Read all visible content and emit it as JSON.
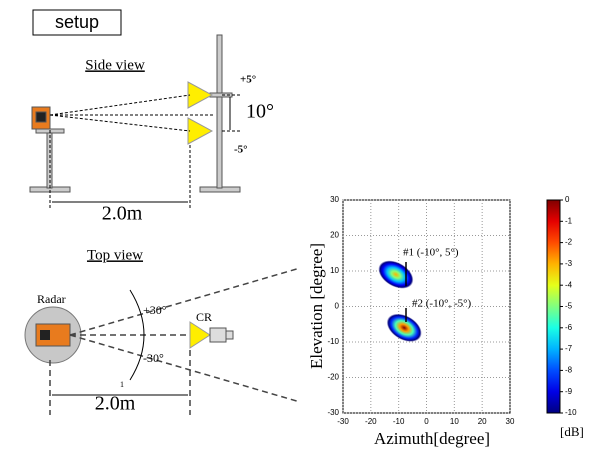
{
  "setup_label": "setup",
  "side_view": {
    "title": "Side view",
    "upper_angle": "+5°",
    "span_angle": "10°",
    "lower_angle": "-5°",
    "distance": "2.0m"
  },
  "top_view": {
    "title": "Top view",
    "radar_label": "Radar",
    "upper_angle": "+30°",
    "lower_angle": "-30°",
    "cr_label": "CR",
    "distance": "2.0m",
    "marker": "1"
  },
  "chart_data": {
    "type": "heatmap",
    "colormap": "jet",
    "xlabel": "Azimuth[degree]",
    "ylabel": "Elevation [degree]",
    "xlim": [
      -30,
      30
    ],
    "ylim": [
      -30,
      30
    ],
    "xticks": [
      -30,
      -20,
      -10,
      0,
      10,
      20,
      30
    ],
    "yticks": [
      -30,
      -20,
      -10,
      0,
      10,
      20,
      30
    ],
    "grid": true,
    "targets": {
      "x": [
        -11,
        -8
      ],
      "y": [
        9,
        -6
      ],
      "peak": [
        -3,
        0
      ]
    },
    "annotations": [
      "#1 (-10°, 5°)",
      "#2 (-10°, -5°)"
    ],
    "colorbar": {
      "label": "[dB]",
      "clim": [
        -10,
        0
      ],
      "ticks": [
        0,
        -1,
        -2,
        -3,
        -4,
        -5,
        -6,
        -7,
        -8,
        -9,
        -10
      ]
    }
  }
}
